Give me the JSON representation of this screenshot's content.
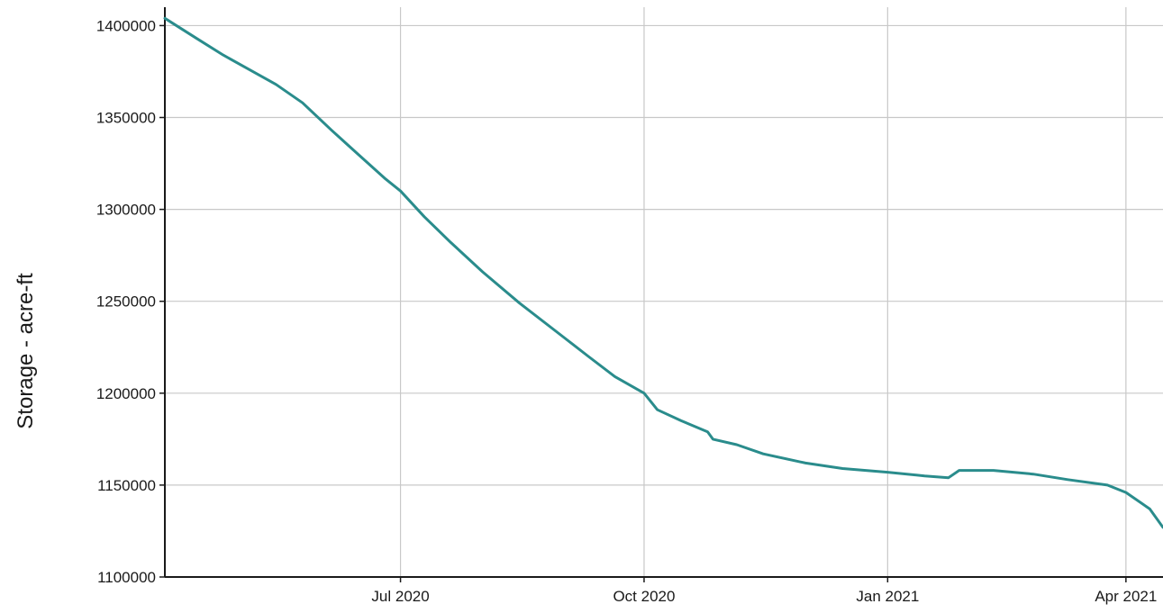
{
  "chart_data": {
    "type": "line",
    "title": "",
    "xlabel": "",
    "ylabel": "Storage - acre-ft",
    "xlim": [
      "2020-04-03",
      "2021-04-15"
    ],
    "ylim": [
      1100000,
      1410000
    ],
    "x_ticks": [
      {
        "date": "2020-07-01",
        "label": "Jul 2020"
      },
      {
        "date": "2020-10-01",
        "label": "Oct 2020"
      },
      {
        "date": "2021-01-01",
        "label": "Jan 2021"
      },
      {
        "date": "2021-04-01",
        "label": "Apr 2021"
      }
    ],
    "y_ticks": [
      1100000,
      1150000,
      1200000,
      1250000,
      1300000,
      1350000,
      1400000
    ],
    "grid": true,
    "series": [
      {
        "color": "#2a8c8c",
        "x": [
          "2020-04-03",
          "2020-04-15",
          "2020-04-25",
          "2020-05-05",
          "2020-05-15",
          "2020-05-25",
          "2020-06-05",
          "2020-06-15",
          "2020-06-25",
          "2020-07-01",
          "2020-07-10",
          "2020-07-20",
          "2020-08-01",
          "2020-08-15",
          "2020-09-01",
          "2020-09-10",
          "2020-09-20",
          "2020-10-01",
          "2020-10-06",
          "2020-10-15",
          "2020-10-25",
          "2020-10-27",
          "2020-11-05",
          "2020-11-15",
          "2020-12-01",
          "2020-12-15",
          "2021-01-01",
          "2021-01-15",
          "2021-01-24",
          "2021-01-28",
          "2021-02-10",
          "2021-02-25",
          "2021-03-10",
          "2021-03-25",
          "2021-04-01",
          "2021-04-10",
          "2021-04-15"
        ],
        "y": [
          1404000,
          1393000,
          1384000,
          1376000,
          1368000,
          1358000,
          1343000,
          1330000,
          1317000,
          1310000,
          1296000,
          1282000,
          1266000,
          1249000,
          1230000,
          1220000,
          1209000,
          1200000,
          1191000,
          1185000,
          1179000,
          1175000,
          1172000,
          1167000,
          1162000,
          1159000,
          1157000,
          1155000,
          1154000,
          1158000,
          1158000,
          1156000,
          1153000,
          1150000,
          1146000,
          1137000,
          1127000
        ]
      }
    ]
  }
}
